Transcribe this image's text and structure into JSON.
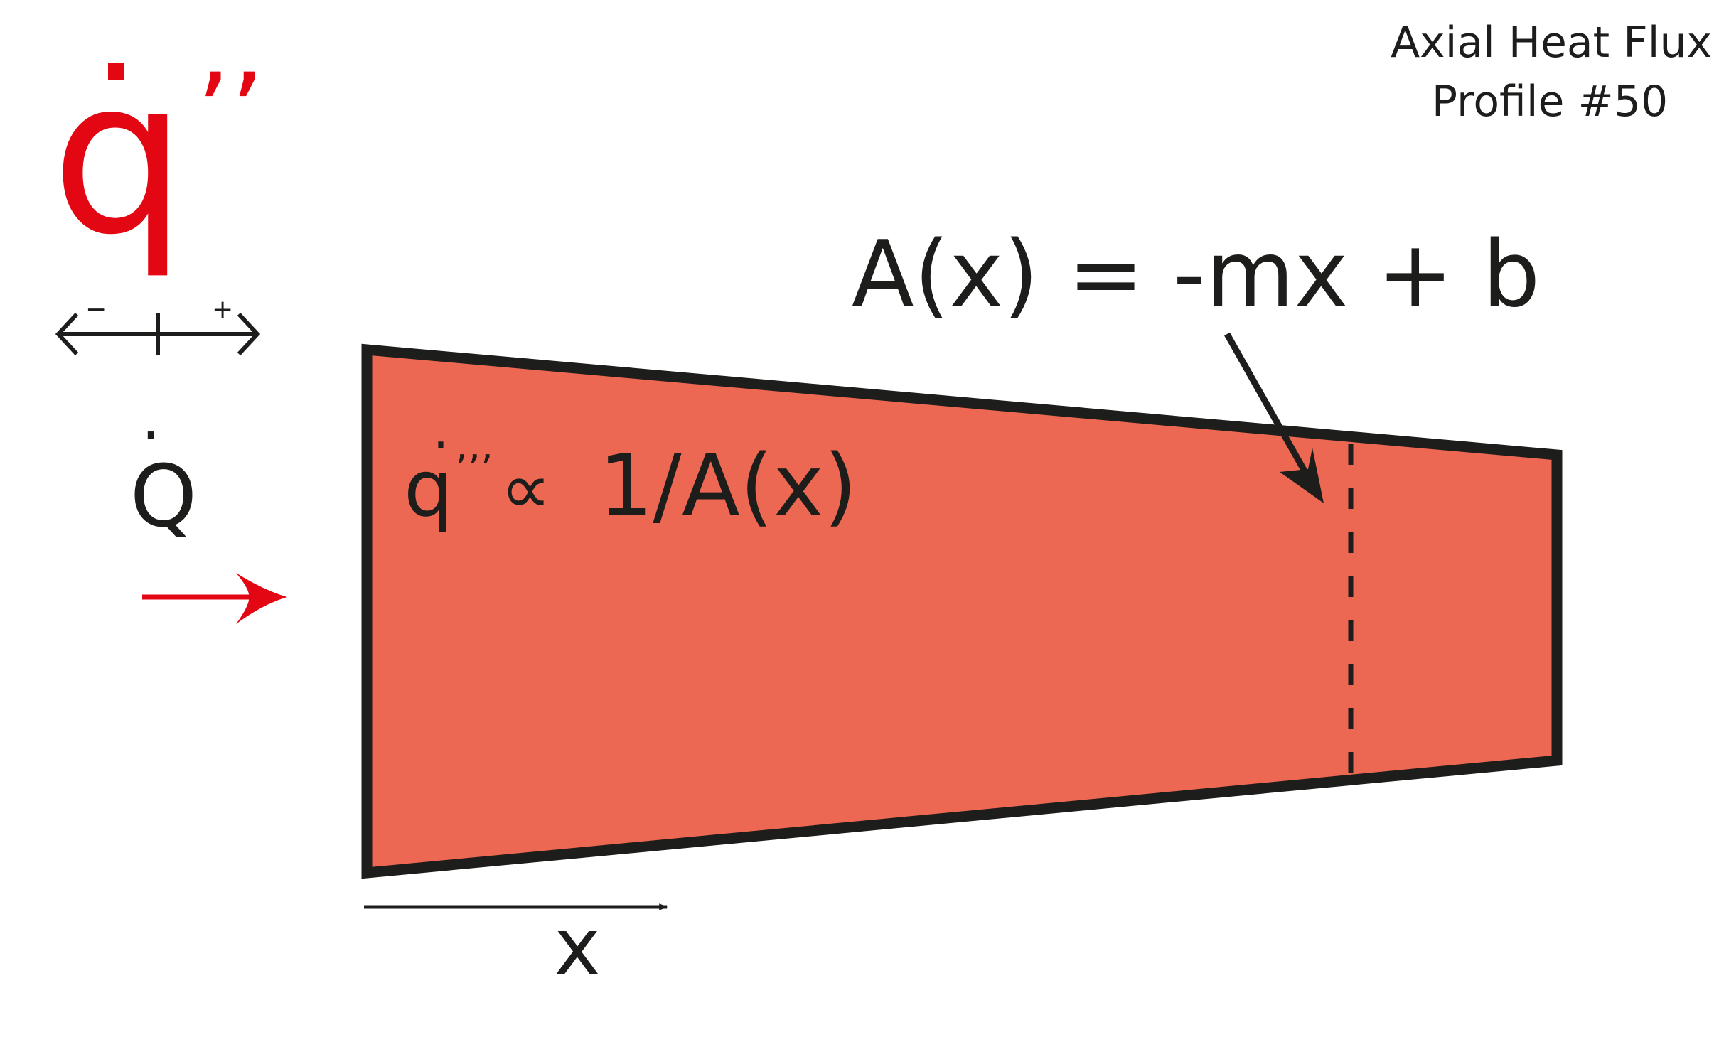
{
  "title": {
    "line1": "Axial Heat Flux",
    "line2": "Profile #50"
  },
  "legend": {
    "symbol_base": "q",
    "symbol_dot": "·",
    "symbol_primes": "’’",
    "minus_label": "−",
    "plus_label": "+"
  },
  "heat_input": {
    "symbol": "Q",
    "dot": "·"
  },
  "area_equation": "A(x) = -mx + b",
  "flux_relation": {
    "symbol": "q",
    "dot": "·",
    "primes": "’’’",
    "proportional": "∝",
    "expression": "1/A(x)"
  },
  "axis_label": "x",
  "colors": {
    "body_fill": "#ec6852",
    "outline": "#1d1d1b",
    "accent_red": "#e30613",
    "text": "#1d1d1b"
  },
  "icons": {
    "legend_arrow": "double-headed-arrow-icon",
    "heat_arrow": "right-arrow-icon",
    "axis_arrow": "right-arrow-icon",
    "pointer_arrow": "pointer-arrow-icon"
  }
}
